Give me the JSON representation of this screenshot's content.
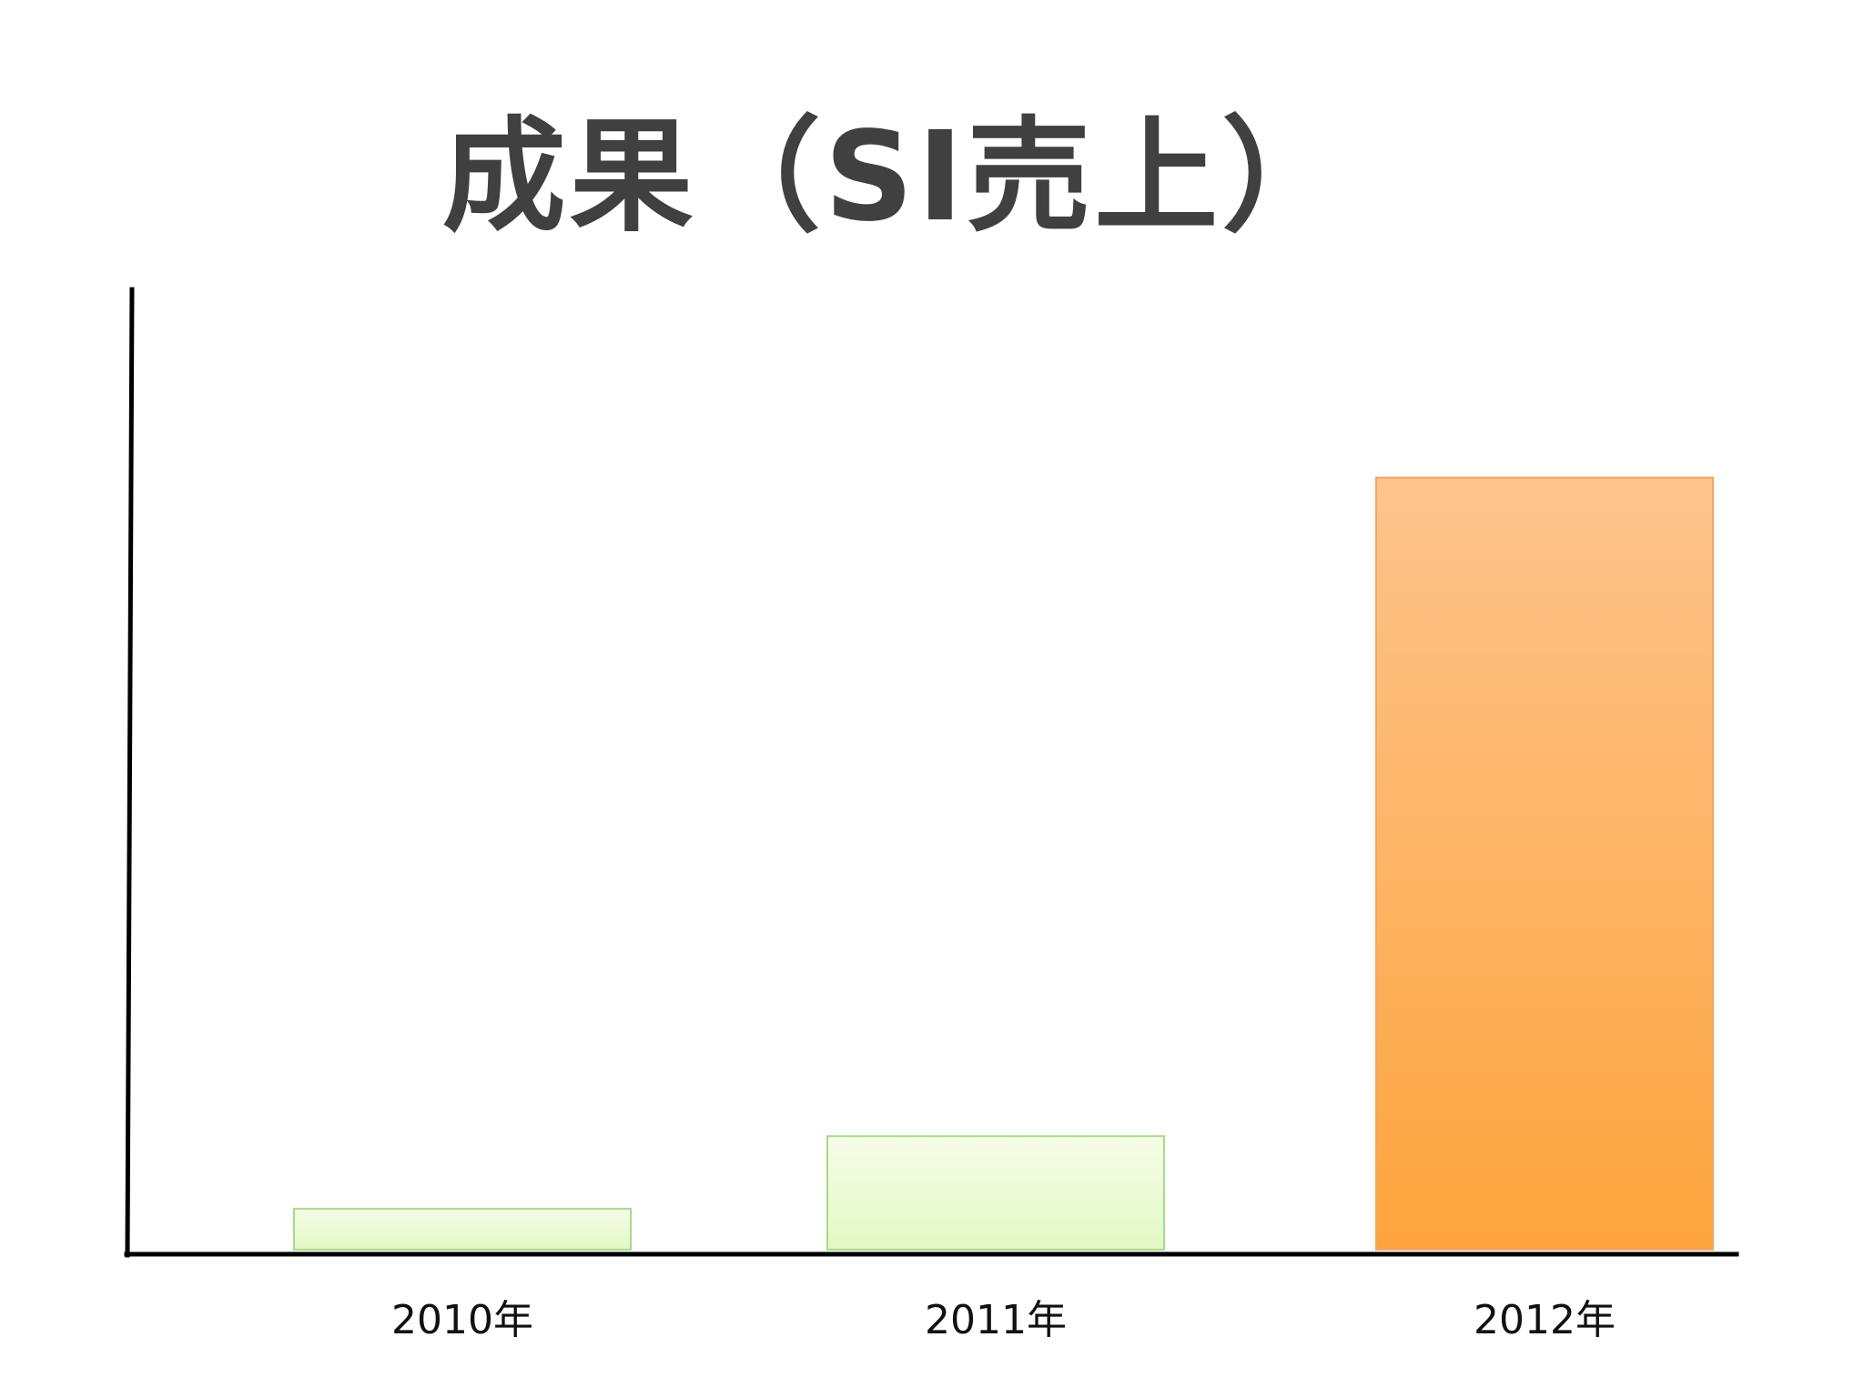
{
  "chart_data": {
    "type": "bar",
    "title": "成果（SI売上）",
    "categories": [
      "2010年",
      "2011年",
      "2012年"
    ],
    "values": [
      4.5,
      12.5,
      85
    ],
    "xlabel": "",
    "ylabel": "",
    "ylim": [
      0,
      100
    ],
    "grid": false,
    "legend": "none",
    "bar_colors": [
      {
        "top": "#f7fde9",
        "bottom": "#e2f8c4",
        "stroke": "#a8d98a"
      },
      {
        "top": "#f7fde9",
        "bottom": "#e2f8c4",
        "stroke": "#a8d98a"
      },
      {
        "top": "#fdc48d",
        "bottom": "#fda43c",
        "stroke": "#f0a860"
      }
    ],
    "axis_color": "#000000"
  }
}
